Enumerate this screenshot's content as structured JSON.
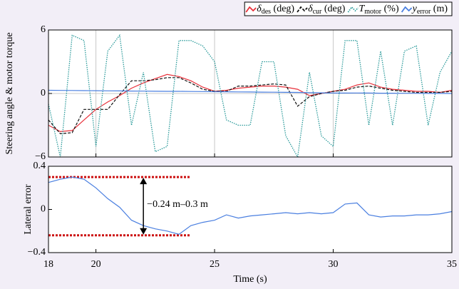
{
  "chart_data": [
    {
      "type": "line",
      "ylabel": "Steering angle & motor torque",
      "x": [
        18,
        18.5,
        19,
        19.5,
        20,
        20.5,
        21,
        21.5,
        22,
        22.5,
        23,
        23.5,
        24,
        24.5,
        25,
        25.5,
        26,
        26.5,
        27,
        27.5,
        28,
        28.5,
        29,
        29.5,
        30,
        30.5,
        31,
        31.5,
        32,
        32.5,
        33,
        33.5,
        34,
        34.5,
        35
      ],
      "xlim": [
        18,
        35
      ],
      "xticks": [
        18,
        20,
        25,
        30,
        35
      ],
      "ylim": [
        -6,
        6
      ],
      "yticks": [
        {
          "value": -6,
          "label": "−6"
        },
        0,
        6
      ],
      "grid": true,
      "legend": "upper right",
      "series": [
        {
          "name": "δdes (deg)",
          "color": "#e8303a",
          "style": "solid",
          "values": [
            -3,
            -3.6,
            -3.5,
            -2.5,
            -1.5,
            -0.8,
            -0.2,
            0.5,
            1,
            1.4,
            1.8,
            1.6,
            1.2,
            0.6,
            0.2,
            0.3,
            0.5,
            0.6,
            0.7,
            0.7,
            0.6,
            0.4,
            -0.2,
            0,
            0.2,
            0.4,
            0.8,
            1,
            0.6,
            0.4,
            0.3,
            0.2,
            0.2,
            0.1,
            0.3
          ]
        },
        {
          "name": "δcur (deg)",
          "color": "#111111",
          "style": "dashed",
          "values": [
            -2.5,
            -3.8,
            -3.7,
            -1.5,
            -1.5,
            -1.5,
            -0.1,
            1.2,
            1.2,
            1.3,
            1.5,
            1.5,
            1,
            0.4,
            0.2,
            0.2,
            0.7,
            0.7,
            0.8,
            0.9,
            0.8,
            -1.2,
            -0.3,
            0,
            0.2,
            0.3,
            0.6,
            0.7,
            0.5,
            0.3,
            0.2,
            0.1,
            0.1,
            0.1,
            0.2
          ]
        },
        {
          "name": "Tmotor (%)",
          "color": "#2a9a9a",
          "style": "dotted",
          "values": [
            -1,
            -6,
            5.5,
            5,
            -5,
            4,
            5.5,
            -3,
            2,
            -5.5,
            -5,
            5,
            5,
            4.5,
            3,
            -2.5,
            -3,
            -3,
            3,
            3,
            -4,
            -6,
            2,
            -4,
            -5,
            5,
            5,
            -3,
            4,
            -3,
            4,
            4.5,
            -3,
            2,
            4
          ]
        },
        {
          "name": "yerror (m)",
          "color": "#4a7fe0",
          "style": "solid",
          "values": [
            0.3,
            0.29,
            0.28,
            0.27,
            0.26,
            0.25,
            0.24,
            0.23,
            0.22,
            0.21,
            0.2,
            0.2,
            0.19,
            0.18,
            0.17,
            0.16,
            0.15,
            0.14,
            0.13,
            0.12,
            0.11,
            0.1,
            0.08,
            0.06,
            0.04,
            0.04,
            0.05,
            0.04,
            0.03,
            0.03,
            0.02,
            0.02,
            0.01,
            0.01,
            0
          ]
        }
      ]
    },
    {
      "type": "line",
      "ylabel": "Lateral error",
      "xlabel": "Time (s)",
      "x": [
        18,
        18.5,
        19,
        19.5,
        20,
        20.5,
        21,
        21.5,
        22,
        22.5,
        23,
        23.5,
        24,
        24.5,
        25,
        25.5,
        26,
        26.5,
        27,
        27.5,
        28,
        28.5,
        29,
        29.5,
        30,
        30.5,
        31,
        31.5,
        32,
        32.5,
        33,
        33.5,
        34,
        34.5,
        35
      ],
      "xlim": [
        18,
        35
      ],
      "xticks": [
        18,
        20,
        25,
        30,
        35
      ],
      "ylim": [
        -0.4,
        0.4
      ],
      "yticks": [
        {
          "value": -0.4,
          "label": "−0.4"
        },
        0,
        0.4
      ],
      "grid": false,
      "series": [
        {
          "name": "Lateral error",
          "color": "#4a7fe0",
          "style": "solid",
          "values": [
            0.25,
            0.28,
            0.3,
            0.28,
            0.2,
            0.1,
            0.02,
            -0.1,
            -0.15,
            -0.18,
            -0.2,
            -0.23,
            -0.15,
            -0.12,
            -0.1,
            -0.05,
            -0.08,
            -0.06,
            -0.05,
            -0.04,
            -0.03,
            -0.04,
            -0.03,
            -0.04,
            -0.03,
            0.05,
            0.06,
            -0.05,
            -0.07,
            -0.06,
            -0.06,
            -0.05,
            -0.05,
            -0.04,
            -0.02
          ]
        }
      ],
      "reference_lines": {
        "values": [
          0.3,
          -0.24
        ],
        "x": [
          18,
          24
        ],
        "color": "#cc1111"
      },
      "annotation": {
        "text": "−0.24 m–0.3 m",
        "x": 22
      }
    }
  ]
}
